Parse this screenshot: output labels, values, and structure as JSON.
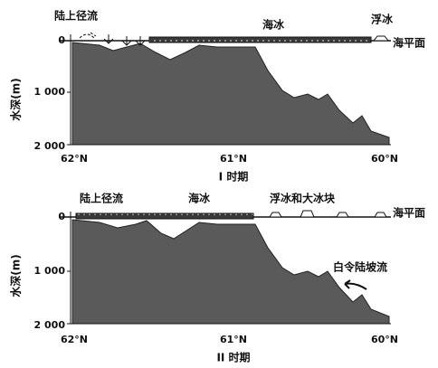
{
  "panels": [
    {
      "labels": {
        "runoff": "陆上径流",
        "sea_ice": "海冰",
        "float_ice": "浮冰",
        "sea_level": "海平面"
      },
      "y_label": "水深(m)",
      "yticks": [
        "0",
        "1 000",
        "2 000"
      ],
      "xticks": [
        "62°N",
        "61°N",
        "60°N"
      ],
      "caption": "I 时期"
    },
    {
      "labels": {
        "runoff": "陆上径流",
        "sea_ice": "海冰",
        "float_ice": "浮冰和大冰块",
        "sea_level": "海平面",
        "current": "白令陆坡流"
      },
      "y_label": "水深(m)",
      "yticks": [
        "0",
        "1 000",
        "2 000"
      ],
      "xticks": [
        "62°N",
        "61°N",
        "60°N"
      ],
      "caption": "II 时期"
    }
  ]
}
